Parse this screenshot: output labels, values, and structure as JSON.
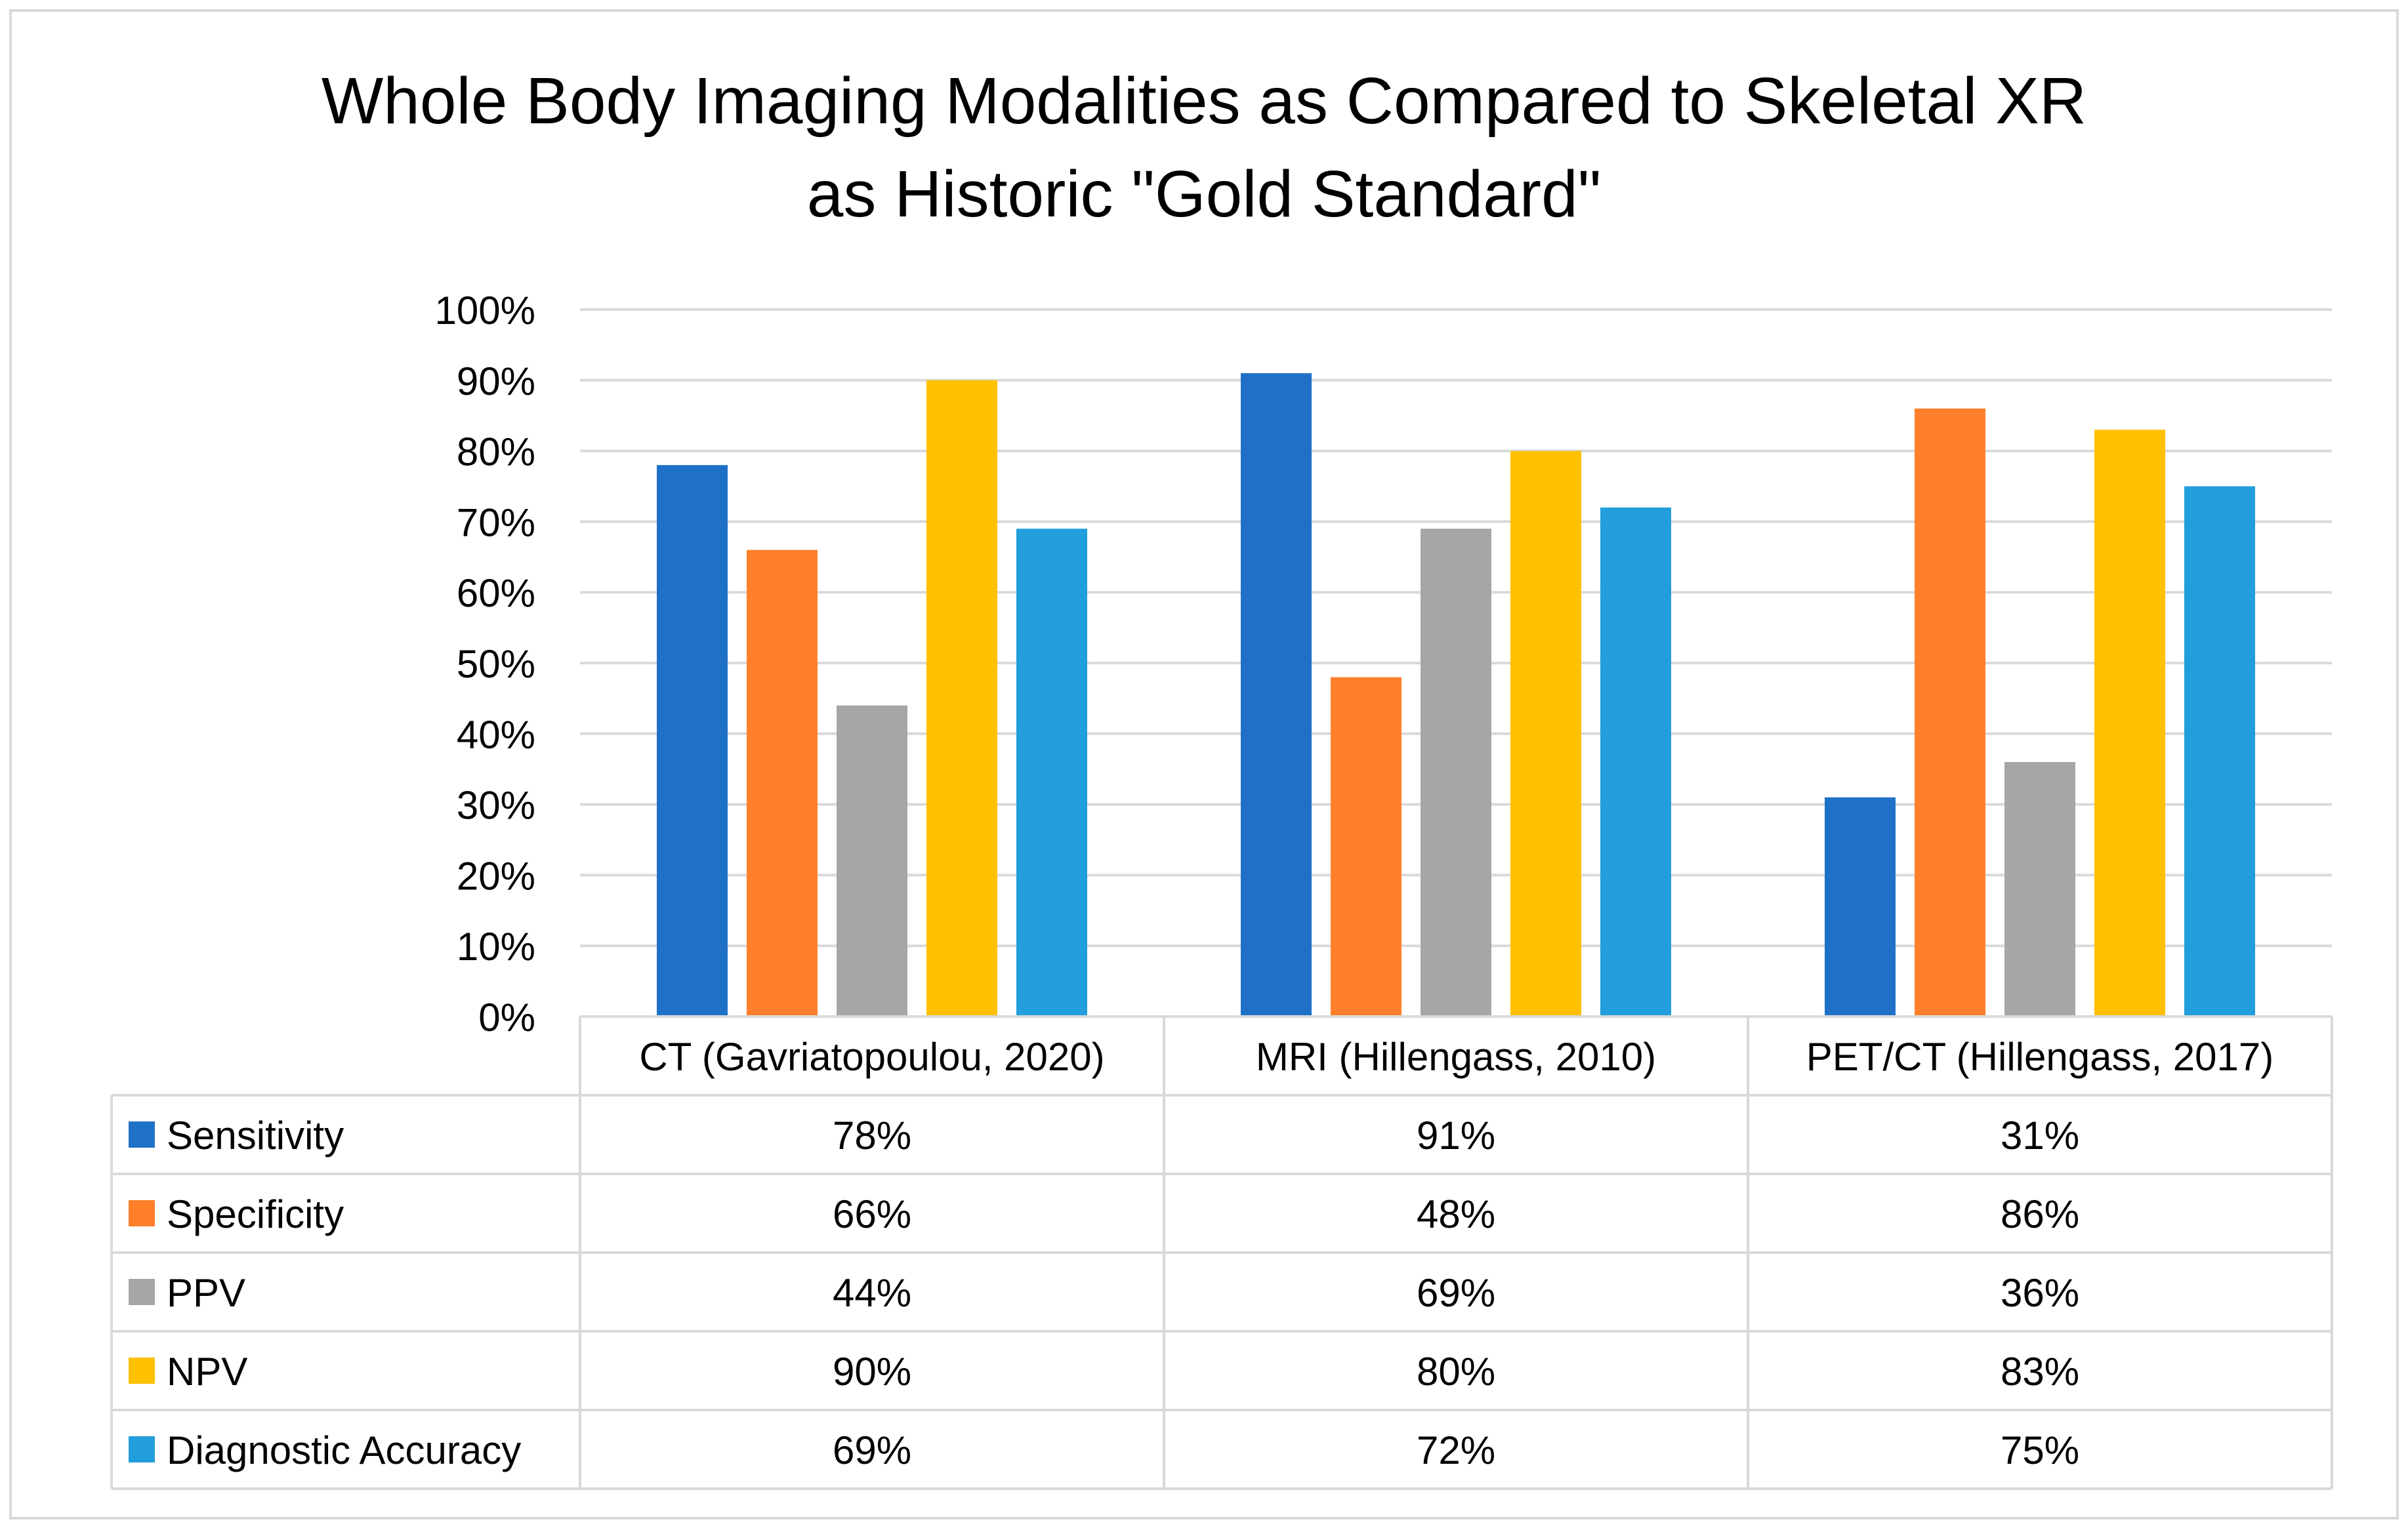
{
  "chart_data": {
    "type": "bar",
    "title_lines": [
      "Whole Body Imaging Modalities as Compared to Skeletal XR",
      "as Historic \"Gold Standard\""
    ],
    "categories": [
      "CT (Gavriatopoulou, 2020)",
      "MRI (Hillengass, 2010)",
      "PET/CT (Hillengass, 2017)"
    ],
    "ylim": [
      0,
      100
    ],
    "yticks": [
      0,
      10,
      20,
      30,
      40,
      50,
      60,
      70,
      80,
      90,
      100
    ],
    "ytick_labels": [
      "0%",
      "10%",
      "20%",
      "30%",
      "40%",
      "50%",
      "60%",
      "70%",
      "80%",
      "90%",
      "100%"
    ],
    "gridlines": true,
    "legend": "data-table",
    "series": [
      {
        "name": "Sensitivity",
        "color": "#1F71C8",
        "values": [
          78,
          91,
          31
        ],
        "labels": [
          "78%",
          "91%",
          "31%"
        ]
      },
      {
        "name": "Specificity",
        "color": "#FF7F2A",
        "values": [
          66,
          48,
          86
        ],
        "labels": [
          "66%",
          "48%",
          "86%"
        ]
      },
      {
        "name": "PPV",
        "color": "#A6A6A6",
        "values": [
          44,
          69,
          36
        ],
        "labels": [
          "44%",
          "69%",
          "36%"
        ]
      },
      {
        "name": "NPV",
        "color": "#FFC000",
        "values": [
          90,
          80,
          83
        ],
        "labels": [
          "90%",
          "80%",
          "83%"
        ]
      },
      {
        "name": "Diagnostic Accuracy",
        "color": "#219EDB",
        "values": [
          69,
          72,
          75
        ],
        "labels": [
          "69%",
          "72%",
          "75%"
        ]
      }
    ]
  }
}
